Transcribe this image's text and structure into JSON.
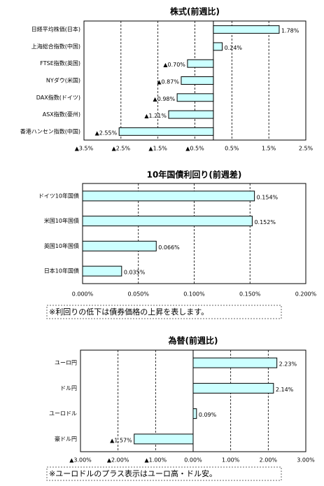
{
  "chart_data": [
    {
      "type": "bar",
      "orientation": "horizontal",
      "title": "株式(前週比)",
      "categories": [
        "日経平均株価(日本)",
        "上海総合指数(中国)",
        "FTSE指数(英国)",
        "NYダウ(米国)",
        "DAX指数(ドイツ)",
        "ASX指数(豪州)",
        "香港ハンセン指数(中国)"
      ],
      "values": [
        1.78,
        0.24,
        -0.7,
        -0.87,
        -0.98,
        -1.21,
        -2.55
      ],
      "value_labels": [
        "1.78%",
        "0.24%",
        "▲0.70%",
        "▲0.87%",
        "▲0.98%",
        "▲1.21%",
        "▲2.55%"
      ],
      "color": "#ccffff",
      "negative_label_color": "#e00000",
      "xlim": [
        -3.5,
        2.5
      ],
      "xticks": [
        {
          "value": -3.5,
          "label": "▲3.5%"
        },
        {
          "value": -2.5,
          "label": "▲2.5%"
        },
        {
          "value": -1.5,
          "label": "▲1.5%"
        },
        {
          "value": -0.5,
          "label": "▲0.5%"
        },
        {
          "value": 0.5,
          "label": "0.5%"
        },
        {
          "value": 1.5,
          "label": "1.5%"
        },
        {
          "value": 2.5,
          "label": "2.5%"
        }
      ],
      "grid": true
    },
    {
      "type": "bar",
      "orientation": "horizontal",
      "title": "10年国債利回り(前週差)",
      "categories": [
        "ドイツ10年国債",
        "米国10年国債",
        "英国10年国債",
        "日本10年国債"
      ],
      "values": [
        0.154,
        0.152,
        0.066,
        0.035
      ],
      "value_labels": [
        "0.154%",
        "0.152%",
        "0.066%",
        "0.035%"
      ],
      "color": "#ccffff",
      "negative_label_color": "#e00000",
      "xlim": [
        0,
        0.2
      ],
      "xticks": [
        {
          "value": 0,
          "label": "0.000%"
        },
        {
          "value": 0.05,
          "label": "0.050%"
        },
        {
          "value": 0.1,
          "label": "0.100%"
        },
        {
          "value": 0.15,
          "label": "0.150%"
        },
        {
          "value": 0.2,
          "label": "0.200%"
        }
      ],
      "grid": true,
      "note": "※利回りの低下は債券価格の上昇を表します。"
    },
    {
      "type": "bar",
      "orientation": "horizontal",
      "title": "為替(前週比)",
      "categories": [
        "ユーロ円",
        "ドル円",
        "ユーロドル",
        "豪ドル円"
      ],
      "values": [
        2.23,
        2.14,
        0.09,
        -1.57
      ],
      "value_labels": [
        "2.23%",
        "2.14%",
        "0.09%",
        "▲1.57%"
      ],
      "color": "#ccffff",
      "negative_label_color": "#e00000",
      "xlim": [
        -3,
        3
      ],
      "xticks": [
        {
          "value": -3,
          "label": "▲3.00%"
        },
        {
          "value": -2,
          "label": "▲2.00%"
        },
        {
          "value": -1,
          "label": "▲1.00%"
        },
        {
          "value": 0,
          "label": "0.00%"
        },
        {
          "value": 1,
          "label": "1.00%"
        },
        {
          "value": 2,
          "label": "2.00%"
        },
        {
          "value": 3,
          "label": "3.00%"
        }
      ],
      "grid": true,
      "note": "※ユーロドルのプラス表示はユーロ高・ドル安。"
    }
  ]
}
